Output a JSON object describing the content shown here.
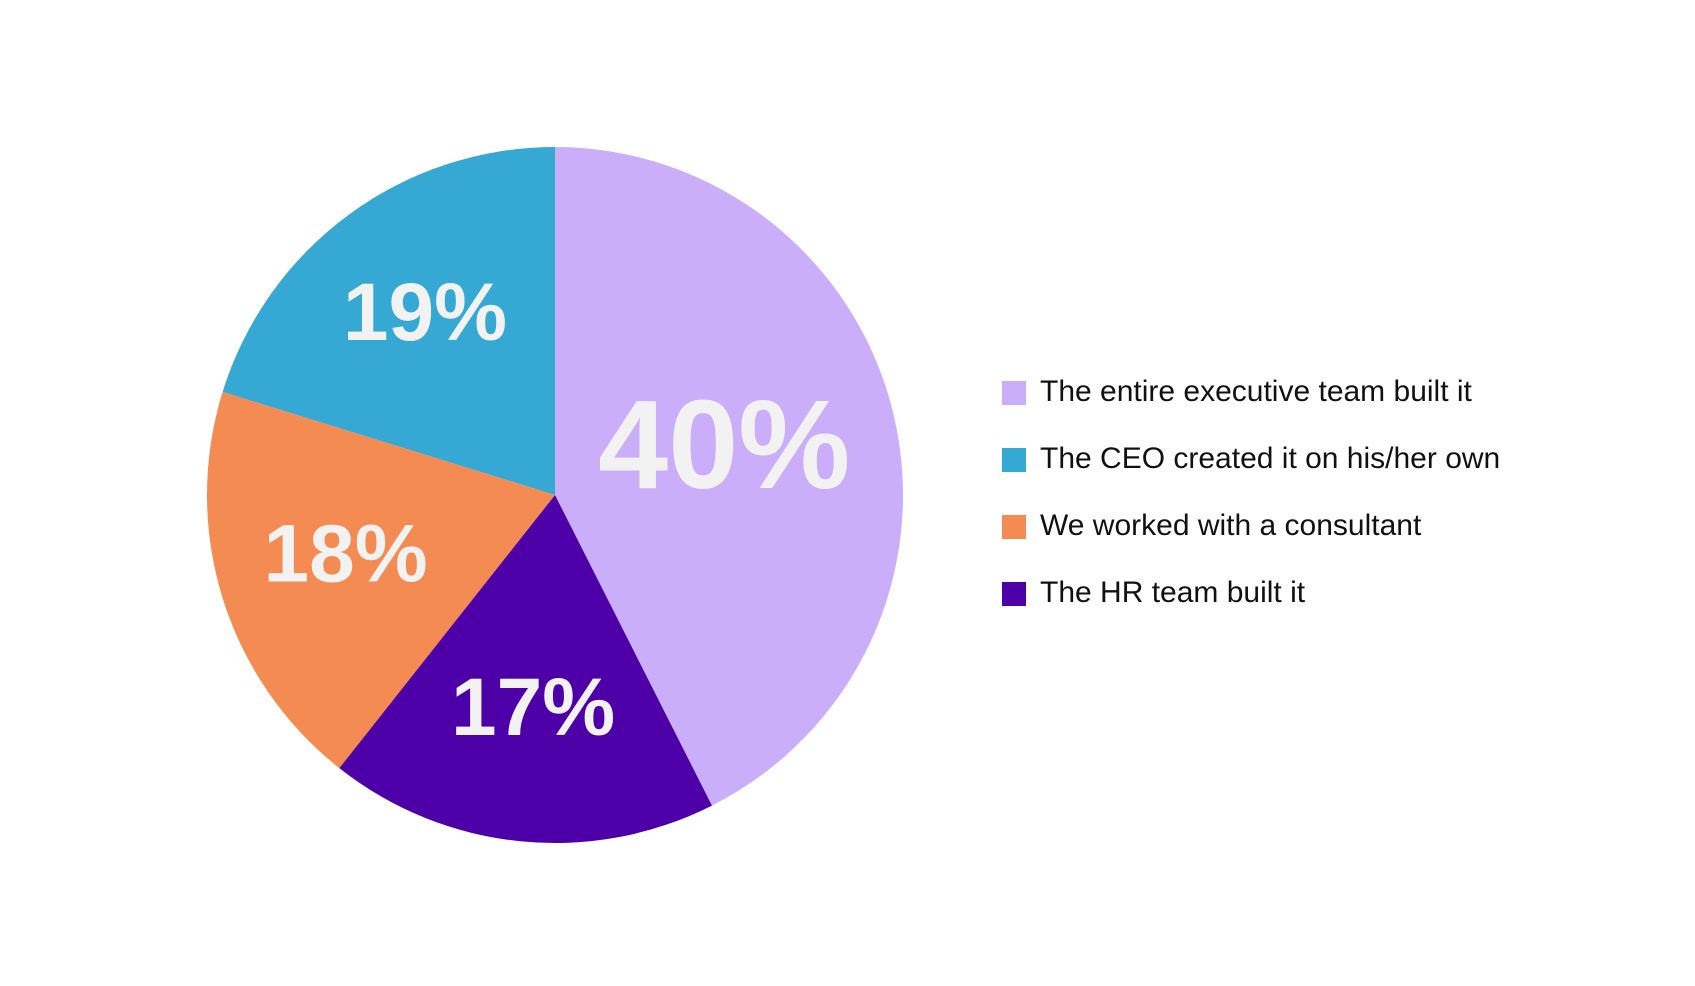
{
  "chart_data": {
    "type": "pie",
    "categories": [
      "The entire executive team built it",
      "The CEO created it on his/her own",
      "We worked with a consultant",
      "The HR team built it"
    ],
    "values": [
      40,
      19,
      18,
      17
    ],
    "value_labels": [
      "40%",
      "19%",
      "18%",
      "17%"
    ],
    "colors": [
      "#cbaef9",
      "#35a8d4",
      "#f48b52",
      "#4e00a8"
    ],
    "legend": "right"
  }
}
